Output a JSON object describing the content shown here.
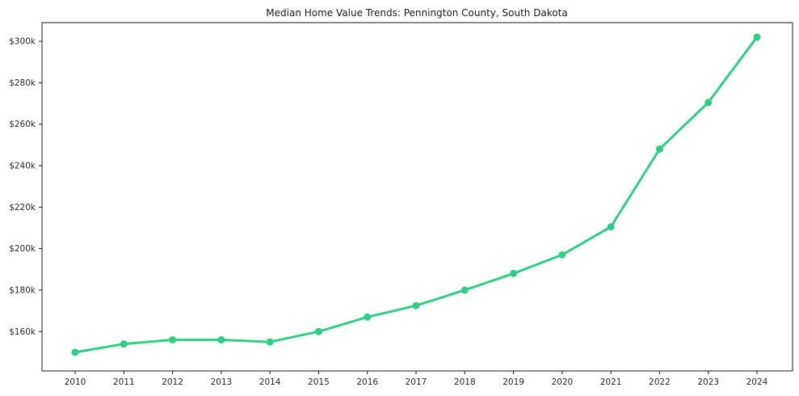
{
  "chart": {
    "title": "Median Home Value Trends: Pennington County, South Dakota"
  },
  "chart_data": {
    "type": "line",
    "title": "Median Home Value Trends: Pennington County, South Dakota",
    "xlabel": "",
    "ylabel": "",
    "x": [
      2010,
      2011,
      2012,
      2013,
      2014,
      2015,
      2016,
      2017,
      2018,
      2019,
      2020,
      2021,
      2022,
      2023,
      2024
    ],
    "series": [
      {
        "name": "Median Home Value",
        "values": [
          150000,
          154000,
          156000,
          156000,
          155000,
          160000,
          167000,
          172500,
          180000,
          188000,
          197000,
          210500,
          248000,
          270500,
          302000
        ]
      }
    ],
    "ylim": [
      141000,
      309000
    ],
    "yticks": [
      160000,
      180000,
      200000,
      220000,
      240000,
      260000,
      280000,
      300000
    ],
    "ytick_labels": [
      "$160k",
      "$180k",
      "$200k",
      "$220k",
      "$240k",
      "$260k",
      "$280k",
      "$300k"
    ],
    "xtick_labels": [
      "2010",
      "2011",
      "2012",
      "2013",
      "2014",
      "2015",
      "2016",
      "2017",
      "2018",
      "2019",
      "2020",
      "2021",
      "2022",
      "2023",
      "2024"
    ],
    "grid": false,
    "legend": "none",
    "line_color": "#2fce82",
    "marker_color": "#2fce82",
    "spine_color": "#1a1a1a",
    "tick_color": "#262626"
  }
}
